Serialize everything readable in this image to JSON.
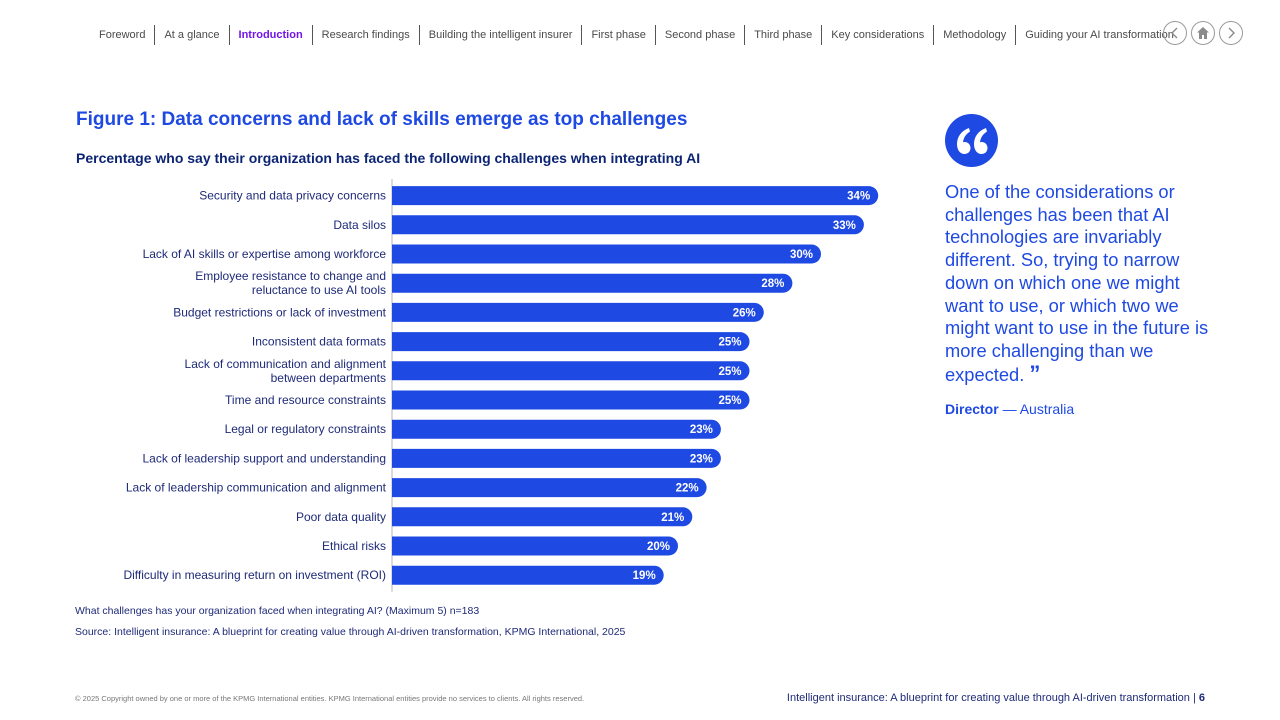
{
  "nav": {
    "items": [
      "Foreword",
      "At a glance",
      "Introduction",
      "Research findings",
      "Building the intelligent insurer",
      "First phase",
      "Second phase",
      "Third phase",
      "Key considerations",
      "Methodology",
      "Guiding your AI transformation"
    ],
    "active_index": 2,
    "buttons": [
      "previous-icon",
      "home-icon",
      "next-icon"
    ]
  },
  "figure": {
    "title": "Figure 1: Data concerns and lack of skills emerge as top challenges",
    "subtitle": "Percentage who say their organization has faced the following challenges when integrating AI"
  },
  "chart_data": {
    "type": "bar",
    "orientation": "horizontal",
    "categories": [
      [
        "Security and data privacy concerns"
      ],
      [
        "Data silos"
      ],
      [
        "Lack of AI skills or expertise among workforce"
      ],
      [
        "Employee resistance to change and",
        "reluctance to use AI tools"
      ],
      [
        "Budget restrictions or lack of investment"
      ],
      [
        "Inconsistent data formats"
      ],
      [
        "Lack of communication and alignment",
        "between departments"
      ],
      [
        "Time and resource constraints"
      ],
      [
        "Legal or regulatory constraints"
      ],
      [
        "Lack of leadership support and understanding"
      ],
      [
        "Lack of leadership communication and alignment"
      ],
      [
        "Poor data quality"
      ],
      [
        "Ethical risks"
      ],
      [
        "Difficulty in measuring return on investment (ROI)"
      ]
    ],
    "values": [
      34,
      33,
      30,
      28,
      26,
      25,
      25,
      25,
      23,
      23,
      22,
      21,
      20,
      19
    ],
    "value_suffix": "%",
    "bar_color": "#1e49e2",
    "xlim": [
      0,
      35
    ]
  },
  "notes": {
    "question": "What challenges has your organization faced when integrating AI? (Maximum 5) n=183",
    "source": "Source: Intelligent insurance: A blueprint for creating value through AI-driven transformation, KPMG International, 2025"
  },
  "quote": {
    "text": "One of the considerations or challenges has been that AI technologies are invariably different. So, trying to narrow down on which one we might want to use, or which two we might want to use in the future is more challenging than we expected.",
    "role": "Director",
    "separator": " — ",
    "location": "Australia"
  },
  "footer": {
    "copyright": "© 2025 Copyright owned by one or more of the KPMG International entities. KPMG International entities provide no services to clients. All rights reserved.",
    "publication": "Intelligent insurance: A blueprint for creating value through AI-driven transformation",
    "page_separator": " | ",
    "page_number": "6"
  },
  "colors": {
    "accent": "#1e49e2",
    "dark_blue": "#0c2474",
    "active_nav": "#7213ea"
  }
}
